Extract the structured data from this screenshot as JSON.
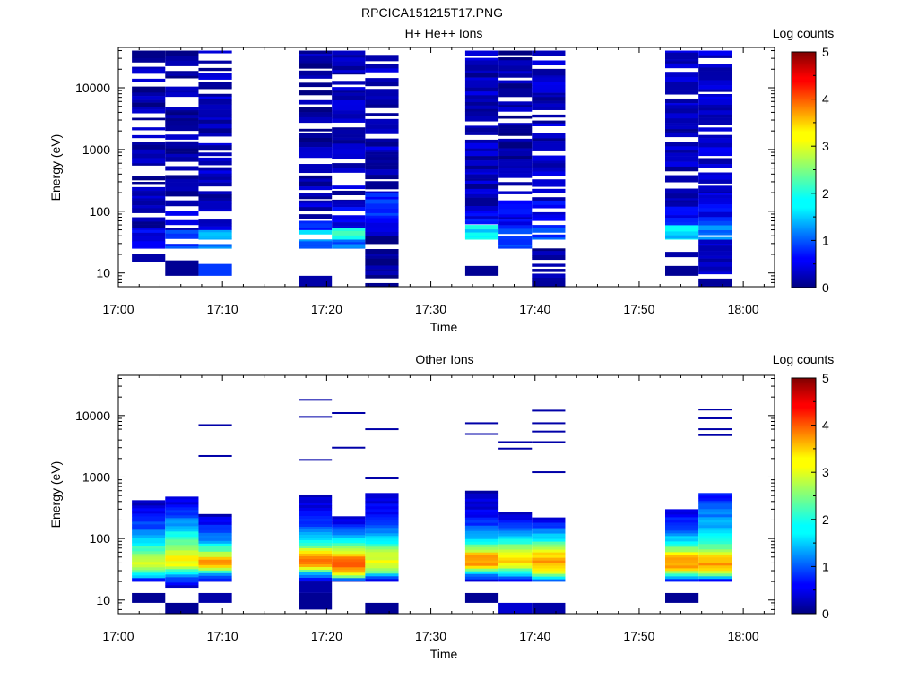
{
  "figure_title": "RPCICA151215T17.PNG",
  "chart_data": [
    {
      "type": "heatmap",
      "title": "H+ He++ Ions",
      "xlabel": "Time",
      "ylabel": "Energy (eV)",
      "x_ticks": [
        "17:00",
        "17:10",
        "17:20",
        "17:30",
        "17:40",
        "17:50",
        "18:00"
      ],
      "xlim": [
        "17:00",
        "18:03"
      ],
      "y_scale": "log",
      "y_ticks": [
        "10",
        "100",
        "1000",
        "10000"
      ],
      "ylim": [
        6,
        45000
      ],
      "colorbar": {
        "label": "Log counts",
        "ticks": [
          "0",
          "1",
          "2",
          "3",
          "4",
          "5"
        ],
        "range": [
          0,
          5
        ]
      },
      "columns": [
        {
          "start": "17:01.3",
          "end": "17:04.5",
          "levels": [
            [
              6,
              25,
              -1
            ],
            [
              25,
              50,
              0.5
            ],
            [
              50,
              150,
              0.3
            ],
            [
              150,
              40000,
              0.2
            ]
          ],
          "low": [
            [
              15,
              20,
              0.2
            ]
          ]
        },
        {
          "start": "17:04.5",
          "end": "17:07.7",
          "levels": [
            [
              6,
              25,
              -1
            ],
            [
              25,
              50,
              1.0
            ],
            [
              50,
              150,
              0.4
            ],
            [
              150,
              40000,
              0.2
            ]
          ],
          "low": [
            [
              9,
              16,
              0.1
            ]
          ]
        },
        {
          "start": "17:07.7",
          "end": "17:10.9",
          "levels": [
            [
              6,
              25,
              -1
            ],
            [
              25,
              35,
              1.2
            ],
            [
              35,
              50,
              1.6
            ],
            [
              50,
              150,
              0.4
            ],
            [
              150,
              40000,
              0.3
            ]
          ],
          "low": [
            [
              9,
              14,
              0.9
            ]
          ]
        },
        {
          "start": "17:17.3",
          "end": "17:20.5",
          "levels": [
            [
              6,
              25,
              -1
            ],
            [
              25,
              35,
              1.2
            ],
            [
              35,
              50,
              1.6
            ],
            [
              50,
              70,
              0.9
            ],
            [
              70,
              150,
              0.3
            ],
            [
              150,
              40000,
              0.2
            ]
          ],
          "low": [
            [
              6,
              9,
              0.2
            ]
          ]
        },
        {
          "start": "17:20.5",
          "end": "17:23.7",
          "levels": [
            [
              6,
              25,
              -1
            ],
            [
              25,
              35,
              1.1
            ],
            [
              35,
              55,
              2.0
            ],
            [
              55,
              150,
              0.5
            ],
            [
              150,
              40000,
              0.3
            ]
          ],
          "low": []
        },
        {
          "start": "17:23.7",
          "end": "17:26.9",
          "levels": [
            [
              6,
              40,
              0.1
            ],
            [
              40,
              80,
              0.5
            ],
            [
              80,
              200,
              0.8
            ],
            [
              200,
              40000,
              0.3
            ]
          ],
          "low": []
        },
        {
          "start": "17:33.3",
          "end": "17:36.5",
          "levels": [
            [
              6,
              35,
              -1
            ],
            [
              35,
              60,
              1.8
            ],
            [
              60,
              120,
              0.6
            ],
            [
              120,
              40000,
              0.3
            ]
          ],
          "low": [
            [
              9,
              13,
              0.1
            ]
          ]
        },
        {
          "start": "17:36.5",
          "end": "17:39.7",
          "levels": [
            [
              6,
              25,
              -1
            ],
            [
              25,
              35,
              0.8
            ],
            [
              35,
              60,
              1.0
            ],
            [
              60,
              150,
              0.5
            ],
            [
              150,
              40000,
              0.2
            ]
          ],
          "low": []
        },
        {
          "start": "17:39.7",
          "end": "17:42.9",
          "levels": [
            [
              6,
              25,
              0.1
            ],
            [
              25,
              35,
              -1
            ],
            [
              35,
              60,
              1.0
            ],
            [
              60,
              150,
              0.6
            ],
            [
              150,
              40000,
              0.3
            ]
          ],
          "low": []
        },
        {
          "start": "17:52.5",
          "end": "17:55.7",
          "levels": [
            [
              6,
              35,
              -1
            ],
            [
              35,
              60,
              1.7
            ],
            [
              60,
              120,
              0.6
            ],
            [
              120,
              40000,
              0.3
            ]
          ],
          "low": [
            [
              9,
              13,
              0.1
            ],
            [
              18,
              22,
              0.2
            ]
          ]
        },
        {
          "start": "17:55.7",
          "end": "17:58.9",
          "levels": [
            [
              6,
              35,
              0.3
            ],
            [
              35,
              70,
              1.2
            ],
            [
              70,
              200,
              0.6
            ],
            [
              200,
              40000,
              0.4
            ]
          ],
          "low": []
        }
      ]
    },
    {
      "type": "heatmap",
      "title": "Other Ions",
      "xlabel": "Time",
      "ylabel": "Energy (eV)",
      "x_ticks": [
        "17:00",
        "17:10",
        "17:20",
        "17:30",
        "17:40",
        "17:50",
        "18:00"
      ],
      "xlim": [
        "17:00",
        "18:03"
      ],
      "y_scale": "log",
      "y_ticks": [
        "10",
        "100",
        "1000",
        "10000"
      ],
      "ylim": [
        6,
        45000
      ],
      "colorbar": {
        "label": "Log counts",
        "ticks": [
          "0",
          "1",
          "2",
          "3",
          "4",
          "5"
        ],
        "range": [
          0,
          5
        ]
      },
      "columns": [
        {
          "start": "17:01.3",
          "end": "17:04.5",
          "profile": [
            [
              20,
              0.3
            ],
            [
              25,
              1.8
            ],
            [
              35,
              3.0
            ],
            [
              50,
              2.7
            ],
            [
              80,
              2.0
            ],
            [
              150,
              1.0
            ],
            [
              300,
              0.5
            ],
            [
              420,
              0.3
            ]
          ],
          "low": [
            [
              9,
              13,
              0.1
            ]
          ],
          "lines": []
        },
        {
          "start": "17:04.5",
          "end": "17:07.7",
          "profile": [
            [
              16,
              0.2
            ],
            [
              25,
              1.4
            ],
            [
              35,
              3.0
            ],
            [
              50,
              3.1
            ],
            [
              90,
              2.3
            ],
            [
              200,
              1.2
            ],
            [
              350,
              0.6
            ],
            [
              480,
              0.3
            ]
          ],
          "low": [
            [
              6,
              9,
              0.1
            ]
          ],
          "lines": []
        },
        {
          "start": "17:07.7",
          "end": "17:10.9",
          "profile": [
            [
              20,
              0.5
            ],
            [
              28,
              1.8
            ],
            [
              35,
              3.4
            ],
            [
              45,
              3.6
            ],
            [
              60,
              2.5
            ],
            [
              100,
              1.2
            ],
            [
              180,
              0.6
            ],
            [
              250,
              0.3
            ]
          ],
          "low": [
            [
              9,
              13,
              0.2
            ]
          ],
          "lines": [
            2200,
            7000
          ]
        },
        {
          "start": "17:17.3",
          "end": "17:20.5",
          "profile": [
            [
              20,
              0.3
            ],
            [
              28,
              1.8
            ],
            [
              35,
              3.6
            ],
            [
              50,
              3.8
            ],
            [
              80,
              2.2
            ],
            [
              150,
              1.0
            ],
            [
              300,
              0.5
            ],
            [
              520,
              0.3
            ]
          ],
          "low": [
            [
              7,
              13,
              0.1
            ],
            [
              13,
              20,
              0.2
            ]
          ],
          "lines": [
            1900,
            9500,
            18000
          ]
        },
        {
          "start": "17:20.5",
          "end": "17:23.7",
          "profile": [
            [
              20,
              0.2
            ],
            [
              25,
              3.0
            ],
            [
              35,
              3.9
            ],
            [
              50,
              3.6
            ],
            [
              70,
              2.6
            ],
            [
              120,
              1.3
            ],
            [
              180,
              0.6
            ],
            [
              230,
              0.3
            ]
          ],
          "low": [],
          "lines": [
            3000,
            11000
          ]
        },
        {
          "start": "17:23.7",
          "end": "17:26.9",
          "profile": [
            [
              20,
              0.3
            ],
            [
              30,
              2.6
            ],
            [
              40,
              3.1
            ],
            [
              60,
              2.7
            ],
            [
              100,
              1.7
            ],
            [
              200,
              0.8
            ],
            [
              550,
              0.3
            ]
          ],
          "low": [
            [
              6,
              9,
              0.1
            ]
          ],
          "lines": [
            950,
            6000
          ]
        },
        {
          "start": "17:33.3",
          "end": "17:36.5",
          "profile": [
            [
              20,
              0.3
            ],
            [
              28,
              1.8
            ],
            [
              35,
              3.6
            ],
            [
              50,
              3.7
            ],
            [
              80,
              2.1
            ],
            [
              150,
              1.0
            ],
            [
              300,
              0.5
            ],
            [
              600,
              0.3
            ]
          ],
          "low": [
            [
              9,
              13,
              0.1
            ]
          ],
          "lines": [
            5000,
            7500
          ]
        },
        {
          "start": "17:36.5",
          "end": "17:39.7",
          "profile": [
            [
              20,
              0.3
            ],
            [
              30,
              2.3
            ],
            [
              40,
              3.3
            ],
            [
              55,
              3.2
            ],
            [
              90,
              2.0
            ],
            [
              150,
              1.0
            ],
            [
              250,
              0.4
            ],
            [
              270,
              0.3
            ]
          ],
          "low": [
            [
              6,
              9,
              0.4
            ]
          ],
          "lines": [
            2900,
            3700
          ]
        },
        {
          "start": "17:39.7",
          "end": "17:42.9",
          "profile": [
            [
              20,
              1.0
            ],
            [
              30,
              3.2
            ],
            [
              40,
              3.6
            ],
            [
              55,
              3.3
            ],
            [
              90,
              2.0
            ],
            [
              150,
              1.0
            ],
            [
              220,
              0.3
            ]
          ],
          "low": [
            [
              6,
              9,
              0.2
            ]
          ],
          "lines": [
            1200,
            3700,
            5500,
            7500,
            12000
          ]
        },
        {
          "start": "17:52.5",
          "end": "17:55.7",
          "profile": [
            [
              20,
              0.2
            ],
            [
              25,
              2.1
            ],
            [
              35,
              3.7
            ],
            [
              50,
              3.5
            ],
            [
              80,
              2.0
            ],
            [
              150,
              1.0
            ],
            [
              300,
              0.4
            ]
          ],
          "low": [
            [
              9,
              13,
              0.1
            ]
          ],
          "lines": []
        },
        {
          "start": "17:55.7",
          "end": "17:58.9",
          "profile": [
            [
              20,
              0.2
            ],
            [
              25,
              2.3
            ],
            [
              35,
              3.6
            ],
            [
              50,
              3.4
            ],
            [
              70,
              2.5
            ],
            [
              150,
              1.5
            ],
            [
              300,
              1.2
            ],
            [
              550,
              0.6
            ]
          ],
          "low": [],
          "lines": [
            4800,
            6000,
            9000,
            12500
          ]
        }
      ]
    }
  ]
}
